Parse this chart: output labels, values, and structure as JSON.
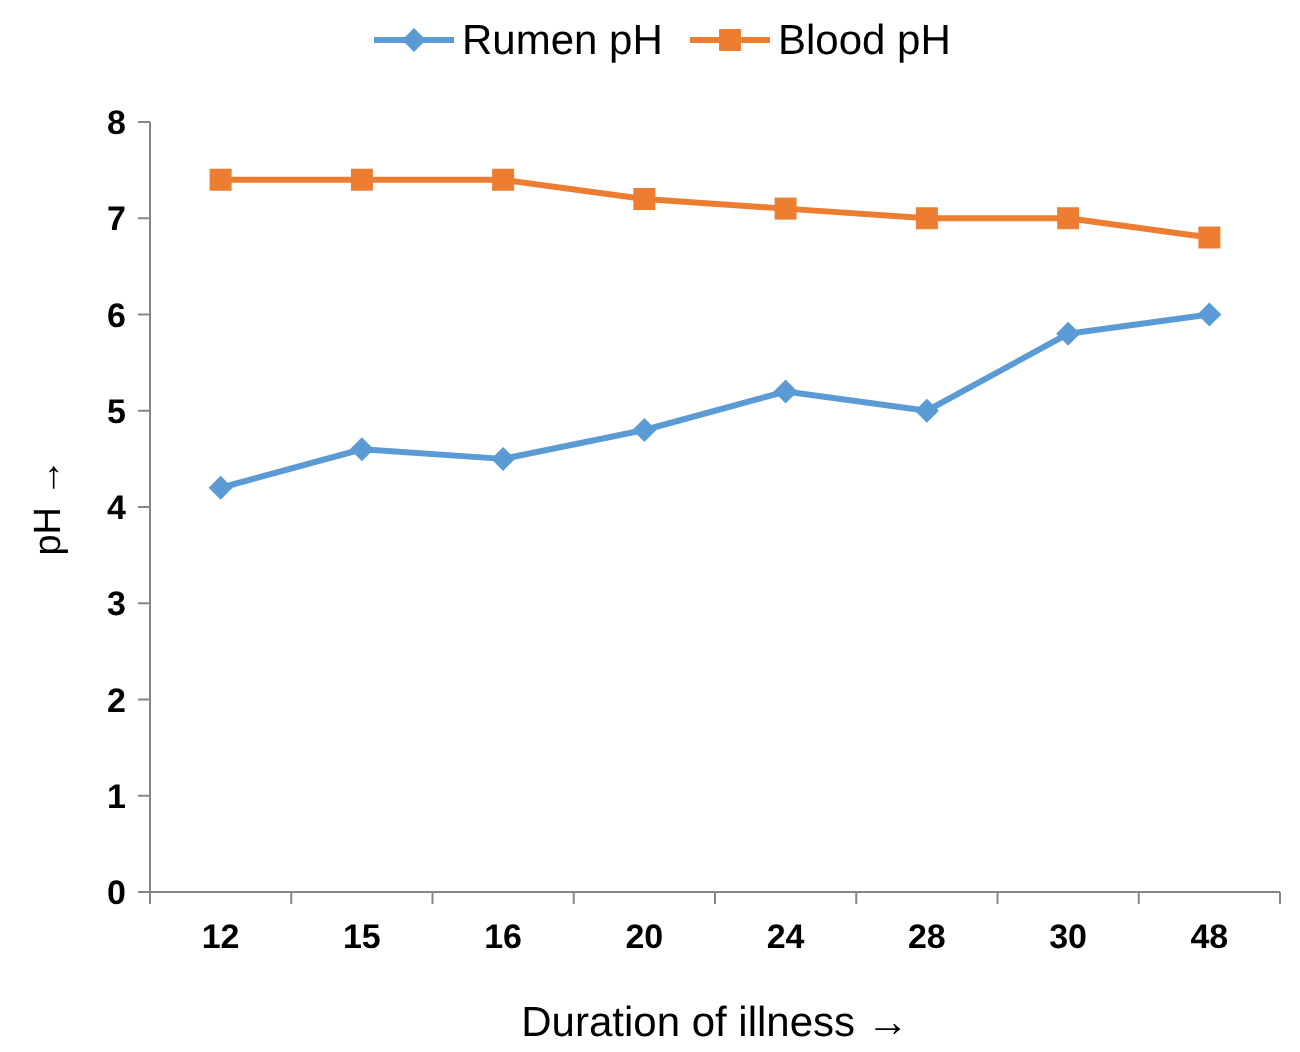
{
  "chart_data": {
    "type": "line",
    "xlabel": "Duration of illness →",
    "ylabel": "pH →",
    "categories": [
      "12",
      "15",
      "16",
      "20",
      "24",
      "28",
      "30",
      "48"
    ],
    "series": [
      {
        "name": "Rumen pH",
        "color": "#5b9bd5",
        "marker": "diamond",
        "values": [
          4.2,
          4.6,
          4.5,
          4.8,
          5.2,
          5.0,
          5.8,
          6.0
        ]
      },
      {
        "name": "Blood pH",
        "color": "#ed7d31",
        "marker": "square",
        "values": [
          7.4,
          7.4,
          7.4,
          7.2,
          7.1,
          7.0,
          7.0,
          6.8
        ]
      }
    ],
    "ylim": [
      0,
      8
    ],
    "yticks": [
      0,
      1,
      2,
      3,
      4,
      5,
      6,
      7,
      8
    ],
    "grid": false,
    "legend": "top",
    "line_style": "solid"
  }
}
